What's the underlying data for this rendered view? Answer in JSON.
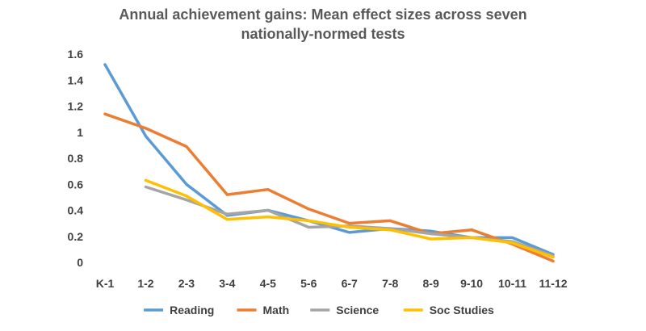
{
  "chart_data": {
    "type": "line",
    "title_lines": [
      "Annual achievement gains: Mean effect sizes across seven",
      "nationally-normed tests"
    ],
    "categories": [
      "K-1",
      "1-2",
      "2-3",
      "3-4",
      "4-5",
      "5-6",
      "6-7",
      "7-8",
      "8-9",
      "9-10",
      "10-11",
      "11-12"
    ],
    "ylim": [
      0,
      1.6
    ],
    "yticks": [
      0,
      0.2,
      0.4,
      0.6,
      0.8,
      1,
      1.2,
      1.4,
      1.6
    ],
    "ytick_labels": [
      "0",
      "0.2",
      "0.4",
      "0.6",
      "0.8",
      "1",
      "1.2",
      "1.4",
      "1.6"
    ],
    "grid": false,
    "legend_position": "bottom",
    "series": [
      {
        "name": "Reading",
        "color": "#5B9BD5",
        "values": [
          1.52,
          0.97,
          0.6,
          0.36,
          0.4,
          0.32,
          0.23,
          0.26,
          0.24,
          0.19,
          0.19,
          0.06
        ]
      },
      {
        "name": "Math",
        "color": "#ED7D31",
        "values": [
          1.14,
          1.03,
          0.89,
          0.52,
          0.56,
          0.41,
          0.3,
          0.32,
          0.22,
          0.25,
          0.14,
          0.01
        ]
      },
      {
        "name": "Science",
        "color": "#A5A5A5",
        "values": [
          null,
          0.58,
          0.48,
          0.37,
          0.4,
          0.27,
          0.28,
          0.26,
          0.22,
          0.19,
          0.16,
          0.05
        ]
      },
      {
        "name": "Soc Studies",
        "color": "#FFC000",
        "values": [
          null,
          0.63,
          0.51,
          0.33,
          0.35,
          0.32,
          0.27,
          0.25,
          0.18,
          0.19,
          0.15,
          0.04
        ]
      }
    ]
  }
}
